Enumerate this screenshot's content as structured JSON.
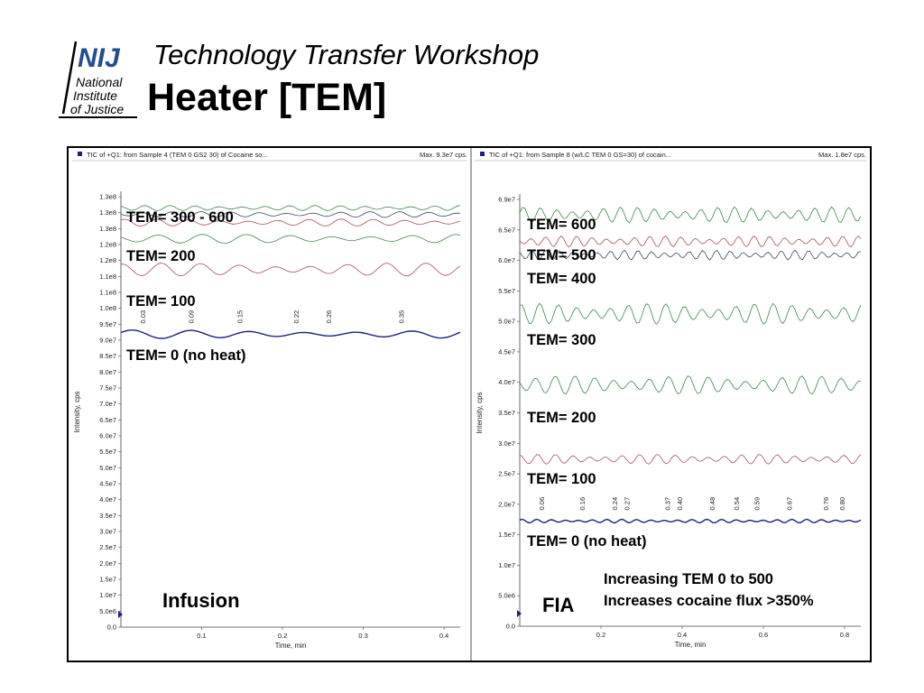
{
  "header": {
    "logo": {
      "acronym": "NIJ",
      "line1": "National",
      "line2": "Institute",
      "line3": "of Justice"
    },
    "subtitle": "Technology Transfer Workshop",
    "title": "Heater [TEM]"
  },
  "colors": {
    "brand": "#1f4f8f",
    "tem0": "#1a237e",
    "red_trace": "#a8505a",
    "green_trace": "#3c8a46",
    "grey_trace": "#3a4a5a"
  },
  "chart_data": [
    {
      "type": "line",
      "panel_name": "infusion",
      "header_text": "TIC of +Q1: from Sample 4 (TEM 0 GS2 30) of Cocaine so...",
      "max_text": "Max. 9.3e7 cps.",
      "xlabel": "Time, min",
      "ylabel": "Intensity, cps",
      "xlim": [
        0,
        0.42
      ],
      "ylim": [
        0,
        133000000
      ],
      "x_ticks": [
        "0.1",
        "0.2",
        "0.3",
        "0.4"
      ],
      "y_ticks": [
        "0.0",
        "5.0e6",
        "1.0e7",
        "1.5e7",
        "2.0e7",
        "2.5e7",
        "3.0e7",
        "3.5e7",
        "4.0e7",
        "4.5e7",
        "5.0e7",
        "5.5e7",
        "6.0e7",
        "6.5e7",
        "7.0e7",
        "7.5e7",
        "8.0e7",
        "8.5e7",
        "9.0e7",
        "9.5e7",
        "1.0e8",
        "1.1e8",
        "1.1e8",
        "1.2e8",
        "1.2e8",
        "1.3e8",
        "1.3e8",
        "1.3e8"
      ],
      "peak_labels": [
        "0.03",
        "0.09",
        "0.15",
        "0.22",
        "0.26",
        "0.35"
      ],
      "peak_x": [
        0.03,
        0.09,
        0.15,
        0.22,
        0.26,
        0.35
      ],
      "grid": false,
      "series": [
        {
          "label_text": "TEM= 0 (no heat)",
          "color": "#1a237e",
          "base": 90500000,
          "amp": 1300000,
          "freq": 6,
          "phase": 0.3,
          "width": 1.4
        },
        {
          "label_text": "TEM= 100",
          "color": "#a8505a",
          "base": 110500000,
          "amp": 2000000,
          "freq": 9,
          "phase": 1.1,
          "width": 0.8
        },
        {
          "label_text": "TEM= 200",
          "color": "#3c8a46",
          "base": 120000000,
          "amp": 1400000,
          "freq": 8,
          "phase": 2.0,
          "width": 0.8
        },
        {
          "label_text": "TEM= 300 - 600",
          "color": "#a8505a",
          "base": 125000000,
          "amp": 1100000,
          "freq": 11,
          "phase": 0.7,
          "width": 0.8
        },
        {
          "label_text": "TEM= 300 - 600",
          "color": "#3a4a5a",
          "base": 127500000,
          "amp": 900000,
          "freq": 12,
          "phase": 2.6,
          "width": 0.8
        },
        {
          "label_text": "TEM= 300 - 600",
          "color": "#3c8a46",
          "base": 129500000,
          "amp": 800000,
          "freq": 14,
          "phase": 1.5,
          "width": 0.8
        }
      ],
      "caption": "Infusion"
    },
    {
      "type": "line",
      "panel_name": "fia",
      "header_text": "TIC of +Q1: from Sample 8 (w/LC TEM 0 GS=30) of cocain...",
      "max_text": "Max. 1.8e7 cps.",
      "xlabel": "Time, min",
      "ylabel": "Intensity, cps",
      "xlim": [
        0,
        0.84
      ],
      "ylim": [
        0,
        69000000
      ],
      "x_ticks": [
        "0.2",
        "0.4",
        "0.6",
        "0.8"
      ],
      "y_ticks": [
        "0.0",
        "5.0e6",
        "1.0e7",
        "1.5e7",
        "2.0e7",
        "2.5e7",
        "3.0e7",
        "3.5e7",
        "4.0e7",
        "4.5e7",
        "5.0e7",
        "5.5e7",
        "6.0e7",
        "6.5e7",
        "6.9e7"
      ],
      "peak_labels": [
        "0.06",
        "0.16",
        "0.24",
        "0.27",
        "0.37",
        "0.40",
        "0.48",
        "0.54",
        "0.59",
        "0.67",
        "0.76",
        "0.80"
      ],
      "peak_x": [
        0.06,
        0.16,
        0.24,
        0.27,
        0.37,
        0.4,
        0.48,
        0.54,
        0.59,
        0.67,
        0.76,
        0.8
      ],
      "grid": false,
      "series": [
        {
          "label_text": "TEM= 0 (no heat)",
          "color": "#1a237e",
          "base": 17000000,
          "amp": 300000,
          "freq": 24,
          "phase": 0.5,
          "width": 1.4
        },
        {
          "label_text": "TEM= 100",
          "color": "#a8505a",
          "base": 27000000,
          "amp": 800000,
          "freq": 20,
          "phase": 1.2,
          "width": 0.8
        },
        {
          "label_text": "TEM= 200",
          "color": "#3c8a46",
          "base": 39000000,
          "amp": 1500000,
          "freq": 18,
          "phase": 2.2,
          "width": 0.8
        },
        {
          "label_text": "TEM= 300",
          "color": "#3c8a46",
          "base": 50500000,
          "amp": 1700000,
          "freq": 19,
          "phase": 0.9,
          "width": 0.8
        },
        {
          "label_text": "TEM= 400",
          "color": "#3a4a5a",
          "base": 60000000,
          "amp": 800000,
          "freq": 26,
          "phase": 1.7,
          "width": 0.8
        },
        {
          "label_text": "TEM= 500",
          "color": "#a8505a",
          "base": 62200000,
          "amp": 900000,
          "freq": 23,
          "phase": 2.8,
          "width": 0.8
        },
        {
          "label_text": "TEM= 600",
          "color": "#3c8a46",
          "base": 66500000,
          "amp": 1300000,
          "freq": 21,
          "phase": 0.2,
          "width": 0.8
        }
      ],
      "caption": "FIA",
      "annotation": [
        "Increasing TEM 0 to 500",
        "Increases cocaine flux >350%"
      ]
    }
  ]
}
